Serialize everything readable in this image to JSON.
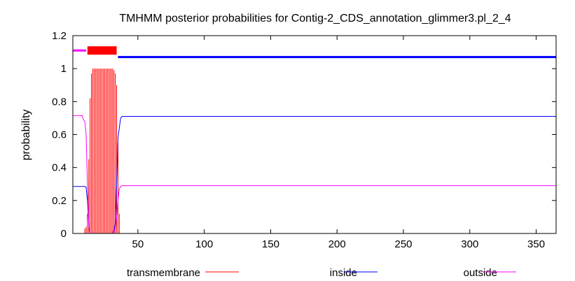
{
  "chart_data": {
    "type": "line",
    "title": "TMHMM posterior probabilities for Contig-2_CDS_annotation_glimmer3.pl_2_4",
    "xlabel": "",
    "ylabel": "probability",
    "xlim": [
      1,
      365
    ],
    "ylim": [
      0,
      1.2
    ],
    "x_ticks": [
      50,
      100,
      150,
      200,
      250,
      300,
      350
    ],
    "y_ticks": [
      0,
      0.2,
      0.4,
      0.6,
      0.8,
      1,
      1.2
    ],
    "y_tick_labels": [
      "0",
      "0.2",
      "0.4",
      "0.6",
      "0.8",
      "1",
      "1.2"
    ],
    "grid": false,
    "legend_position": "bottom",
    "colors": {
      "transmembrane": "#ff0000",
      "inside": "#0000ff",
      "outside": "#ff00ff"
    },
    "series": [
      {
        "name": "transmembrane",
        "style": "impulses",
        "x": [
          10,
          11,
          12,
          13,
          14,
          15,
          16,
          17,
          18,
          19,
          20,
          21,
          22,
          23,
          24,
          25,
          26,
          27,
          28,
          29,
          30,
          31,
          32,
          33,
          34,
          35,
          36
        ],
        "values": [
          0.03,
          0.04,
          0.12,
          0.45,
          0.82,
          0.97,
          1.0,
          1.0,
          1.0,
          1.0,
          1.0,
          1.0,
          1.0,
          1.0,
          1.0,
          1.0,
          1.0,
          1.0,
          1.0,
          1.0,
          1.0,
          1.0,
          0.99,
          0.97,
          0.9,
          0.55,
          0.12
        ]
      },
      {
        "name": "inside",
        "style": "line",
        "x": [
          1,
          10,
          11,
          12,
          13,
          14,
          15,
          16,
          31,
          32,
          33,
          34,
          35,
          36,
          37,
          38,
          39,
          365
        ],
        "values": [
          0.285,
          0.285,
          0.28,
          0.2,
          0.05,
          0.0,
          0.0,
          0.0,
          0.0,
          0.02,
          0.06,
          0.3,
          0.58,
          0.64,
          0.7,
          0.71,
          0.71,
          0.71
        ]
      },
      {
        "name": "outside",
        "style": "line",
        "x": [
          1,
          8,
          9,
          10,
          11,
          12,
          13,
          14,
          15,
          16,
          31,
          32,
          33,
          34,
          35,
          36,
          37,
          38,
          39,
          365
        ],
        "values": [
          0.715,
          0.715,
          0.69,
          0.68,
          0.6,
          0.3,
          0.05,
          0.0,
          0.0,
          0.0,
          0.0,
          0.01,
          0.03,
          0.1,
          0.2,
          0.27,
          0.285,
          0.29,
          0.29,
          0.29
        ]
      }
    ],
    "topology": [
      {
        "type": "outside",
        "start": 1,
        "end": 11,
        "level": 1.11,
        "color": "#ff00ff"
      },
      {
        "type": "transmembrane",
        "start": 12,
        "end": 34,
        "level": 1.11,
        "color": "#ff0000"
      },
      {
        "type": "inside",
        "start": 35,
        "end": 365,
        "level": 1.07,
        "color": "#0000ff"
      }
    ]
  }
}
